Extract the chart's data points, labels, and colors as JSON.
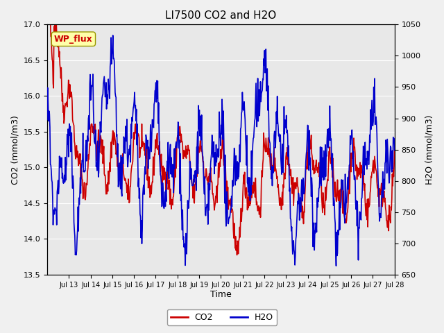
{
  "title": "LI7500 CO2 and H2O",
  "xlabel": "Time",
  "ylabel_left": "CO2 (mmol/m3)",
  "ylabel_right": "H2O (mmol/m3)",
  "ylim_left": [
    13.5,
    17.0
  ],
  "ylim_right": [
    650,
    1050
  ],
  "yticks_left": [
    13.5,
    14.0,
    14.5,
    15.0,
    15.5,
    16.0,
    16.5,
    17.0
  ],
  "yticks_right": [
    650,
    700,
    750,
    800,
    850,
    900,
    950,
    1000,
    1050
  ],
  "xtick_labels": [
    "Jul 13",
    "Jul 14",
    "Jul 15",
    "Jul 16",
    "Jul 17",
    "Jul 18",
    "Jul 19",
    "Jul 20",
    "Jul 21",
    "Jul 22",
    "Jul 23",
    "Jul 24",
    "Jul 25",
    "Jul 26",
    "Jul 27",
    "Jul 28"
  ],
  "background_color": "#f0f0f0",
  "plot_bg_color": "#e8e8e8",
  "co2_color": "#cc0000",
  "h2o_color": "#0000cc",
  "legend_co2": "CO2",
  "legend_h2o": "H2O",
  "wp_flux_label": "WP_flux",
  "wp_flux_bg": "#ffffaa",
  "wp_flux_border": "#999900",
  "wp_flux_text_color": "#cc0000",
  "grid_color": "#ffffff",
  "linewidth": 1.2
}
